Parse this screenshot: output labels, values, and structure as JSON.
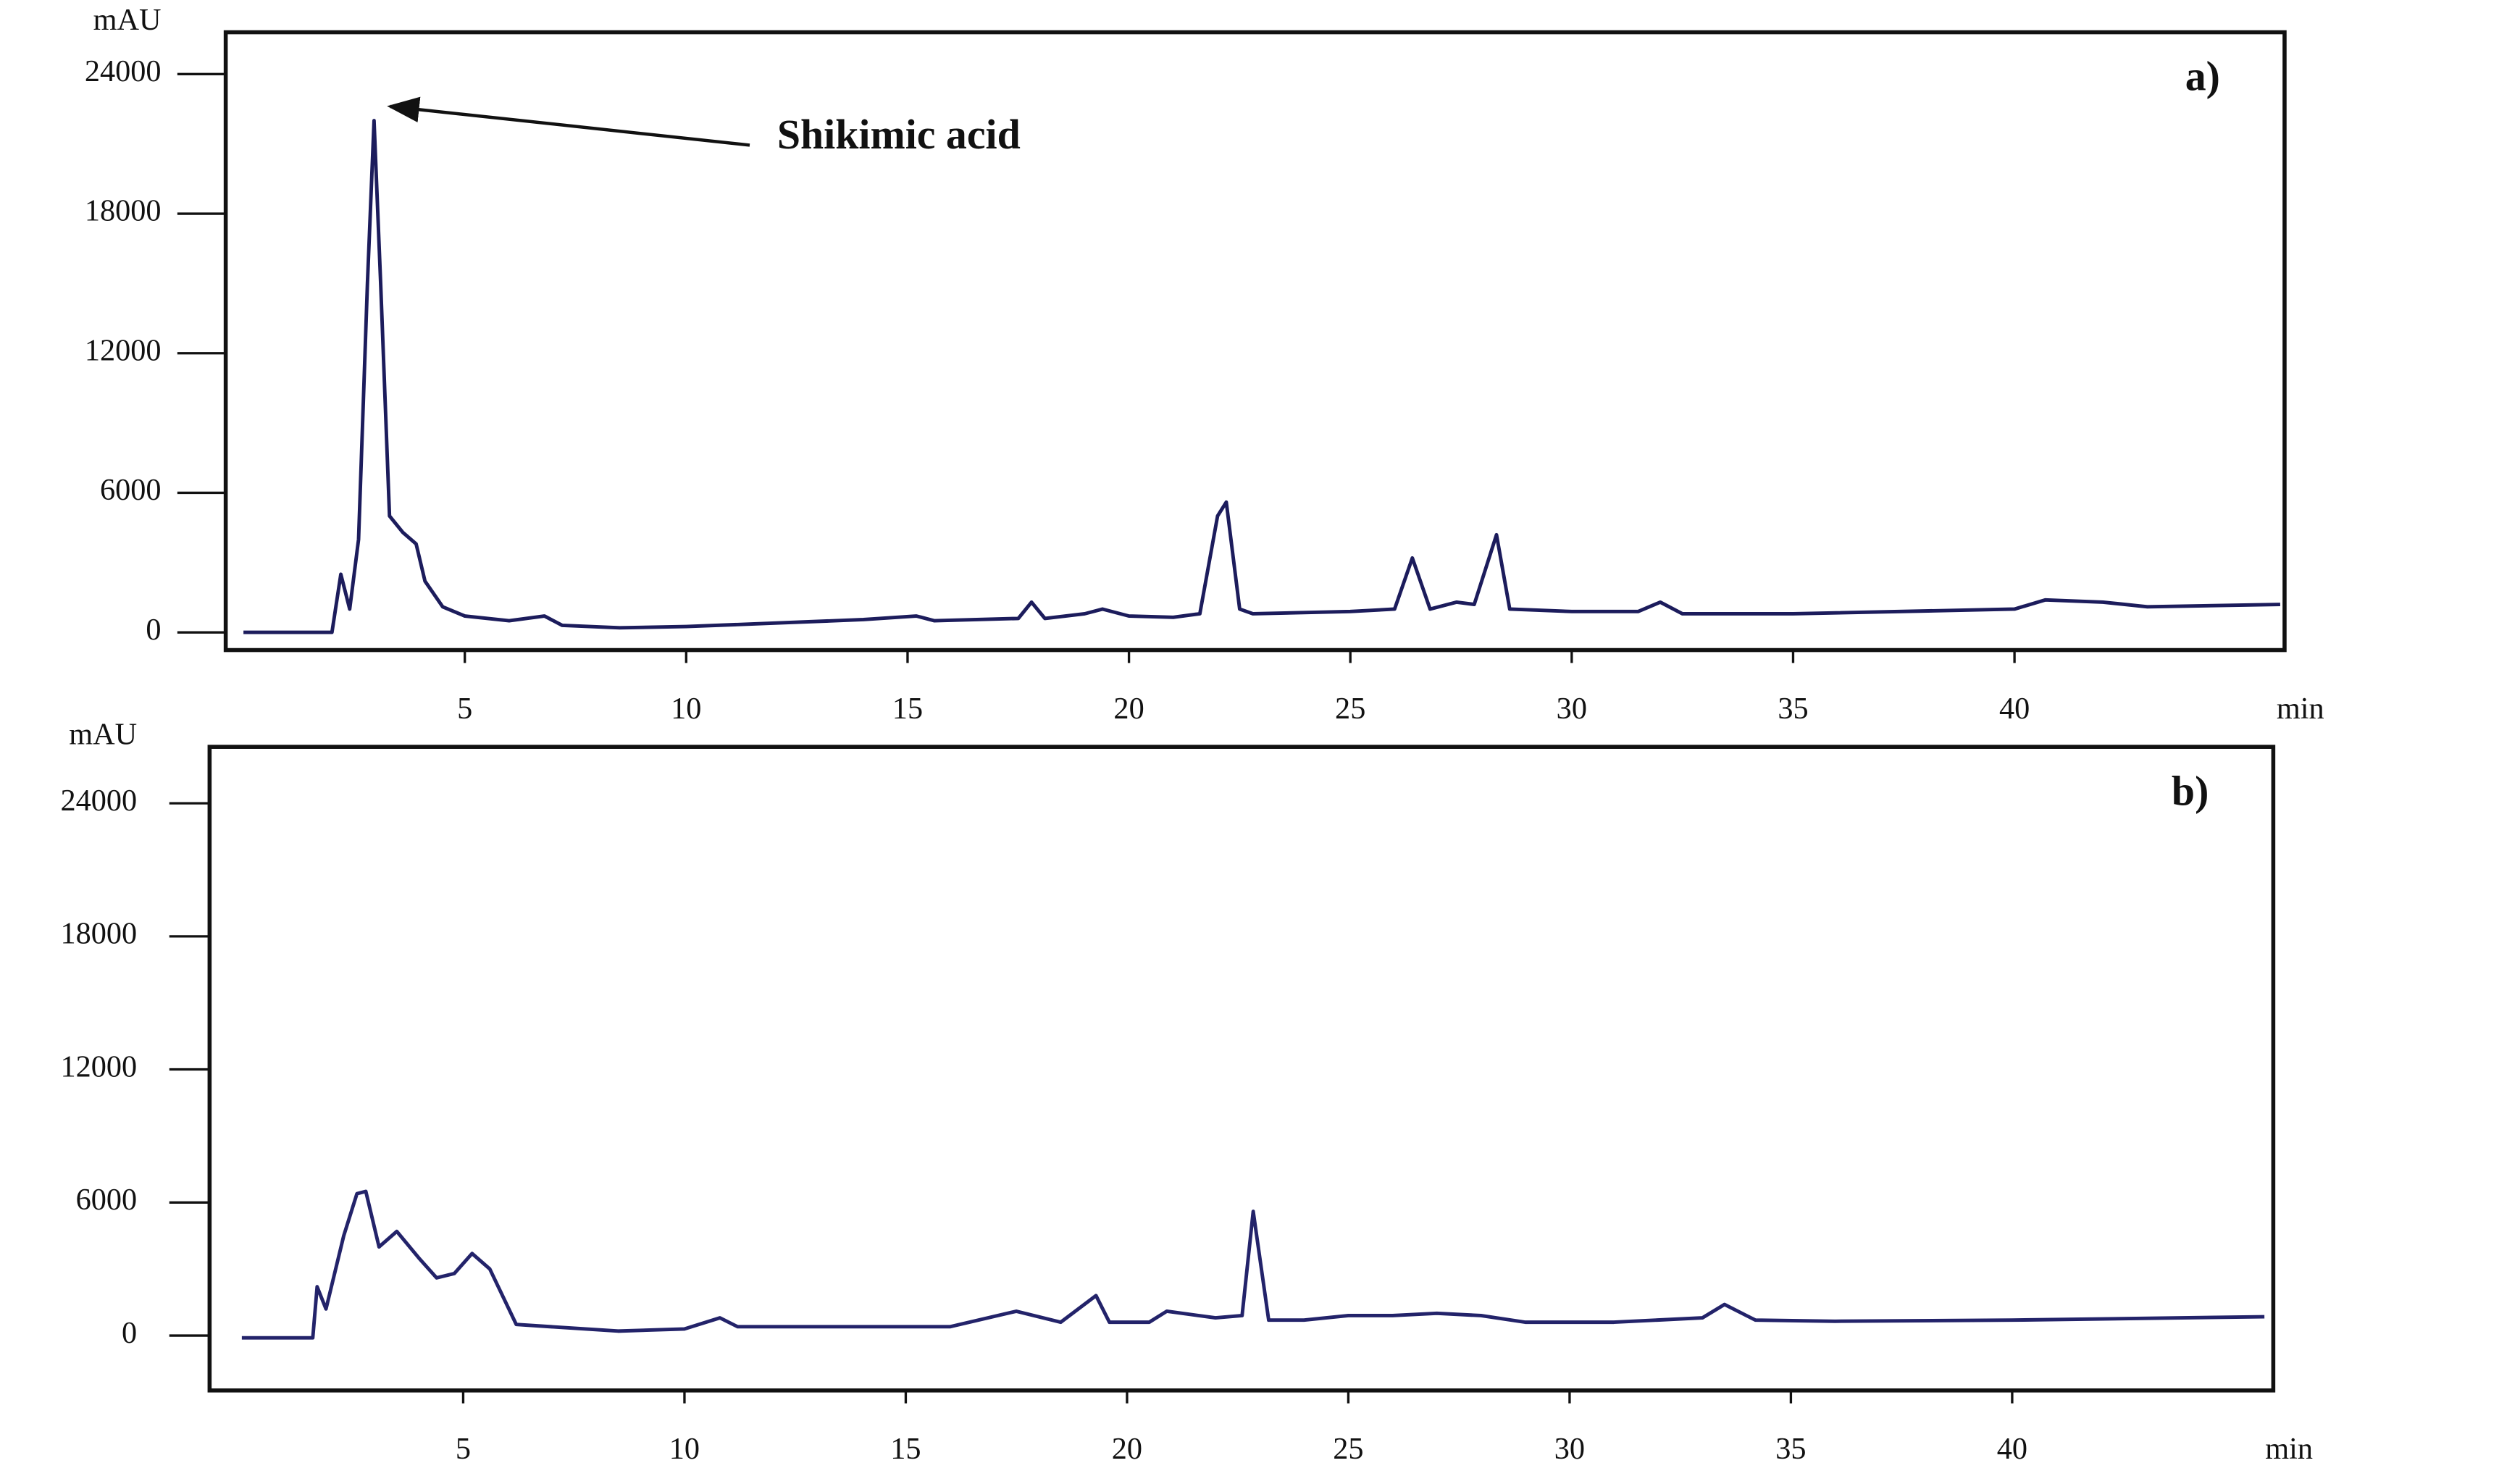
{
  "chart_data": [
    {
      "type": "line",
      "label": "a)",
      "y_label": "mAU",
      "x_label": "min",
      "annotation": "Shikimic acid",
      "x": [
        0,
        2.0,
        2.2,
        2.4,
        2.6,
        2.8,
        2.95,
        3.1,
        3.3,
        3.6,
        3.9,
        4.1,
        4.5,
        5,
        6,
        6.8,
        7.2,
        8.5,
        10,
        12,
        14,
        15.2,
        15.6,
        17.5,
        17.8,
        18.1,
        19,
        19.4,
        20,
        21,
        21.6,
        22,
        22.2,
        22.5,
        22.8,
        25,
        26,
        26.4,
        26.8,
        27.4,
        27.8,
        28.3,
        28.6,
        30,
        31.5,
        32,
        32.5,
        35,
        40,
        40.7,
        42,
        43,
        46
      ],
      "series": [
        {
          "color": "#1c1c5c",
          "values": [
            0,
            0,
            2500,
            1000,
            4000,
            15000,
            22000,
            15000,
            5000,
            4300,
            3800,
            2200,
            1100,
            700,
            500,
            700,
            300,
            200,
            250,
            400,
            550,
            700,
            500,
            600,
            1300,
            600,
            800,
            1000,
            700,
            650,
            800,
            5000,
            5600,
            1000,
            800,
            900,
            1000,
            3200,
            1000,
            1300,
            1200,
            4200,
            1000,
            900,
            900,
            1300,
            800,
            800,
            1000,
            1400,
            1300,
            1100,
            1200
          ]
        }
      ],
      "xlim": [
        -0.4,
        46.1
      ],
      "ylim": [
        -760,
        25800
      ],
      "xticks": [
        5,
        10,
        15,
        20,
        25,
        30,
        35,
        40
      ],
      "yticks": [
        0,
        6000,
        12000,
        18000,
        24000
      ]
    },
    {
      "type": "line",
      "label": "b)",
      "y_label": "mAU",
      "x_label": "min",
      "x": [
        0,
        1.6,
        1.7,
        1.9,
        2.3,
        2.6,
        2.8,
        3.1,
        3.5,
        4,
        4.4,
        4.8,
        5.2,
        5.6,
        6.2,
        8.5,
        10,
        10.8,
        11.2,
        13,
        16,
        17.5,
        18.5,
        19.3,
        19.6,
        20.5,
        20.9,
        22,
        22.6,
        22.85,
        23.2,
        24,
        25,
        26,
        27,
        28,
        29,
        31,
        33,
        33.5,
        34.2,
        36,
        40,
        45.7
      ],
      "series": [
        {
          "color": "#23236a",
          "values": [
            -100,
            -100,
            2200,
            1200,
            4500,
            6400,
            6500,
            4000,
            4700,
            3500,
            2600,
            2800,
            3700,
            3000,
            500,
            200,
            300,
            800,
            400,
            400,
            400,
            1100,
            600,
            1800,
            600,
            600,
            1100,
            800,
            900,
            5600,
            700,
            700,
            900,
            900,
            1000,
            900,
            600,
            600,
            800,
            1400,
            700,
            650,
            700,
            850
          ]
        }
      ],
      "xlim": [
        -0.73,
        45.9
      ],
      "ylim": [
        -2473,
        26545
      ],
      "xticks": [
        5,
        10,
        15,
        20,
        25,
        30,
        35,
        40
      ],
      "yticks": [
        0,
        6000,
        12000,
        18000,
        24000
      ]
    }
  ]
}
